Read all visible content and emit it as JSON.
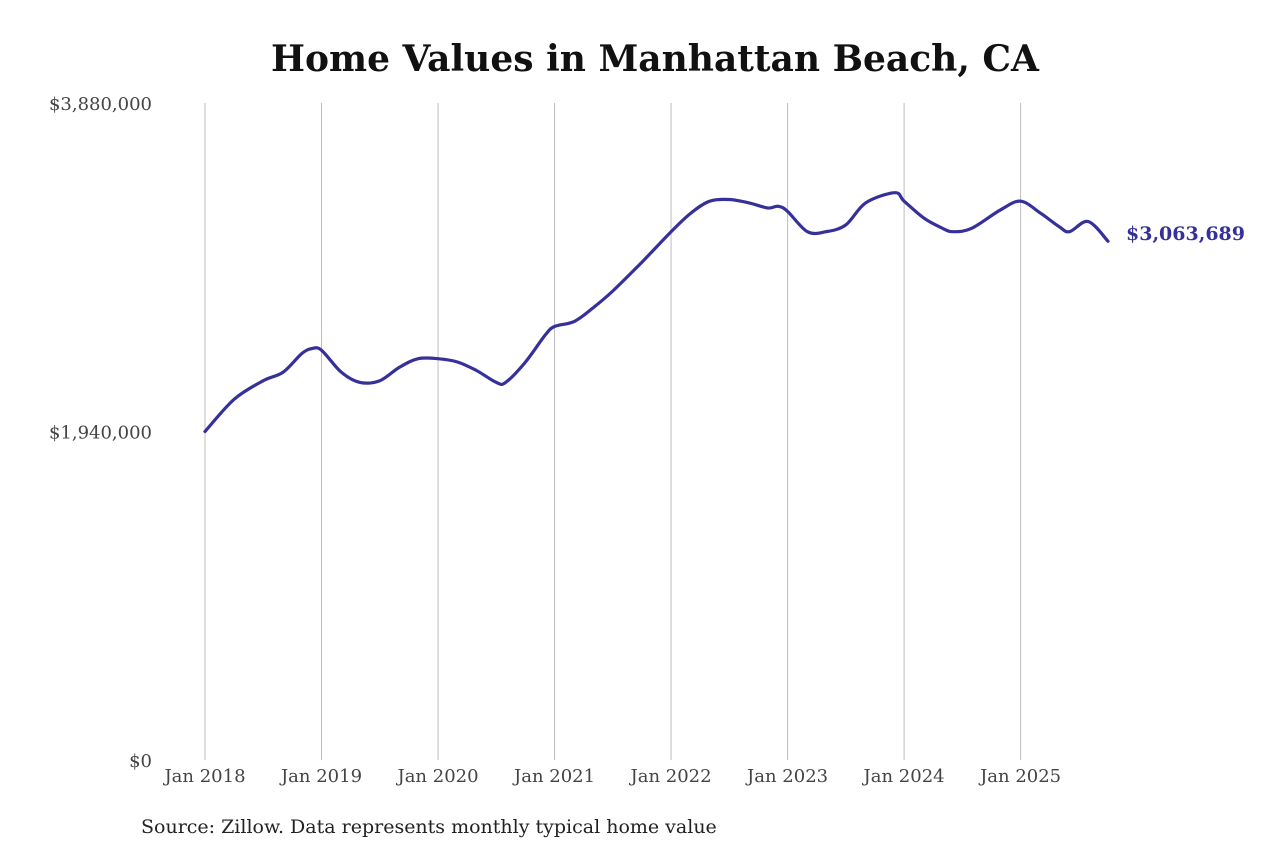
{
  "chart_data": {
    "type": "line",
    "title": "Home Values in Manhattan Beach, CA",
    "source": "Source: Zillow. Data represents monthly typical home value",
    "ylim": [
      0,
      3880000
    ],
    "yticks": [
      {
        "value": 0,
        "label": "$0"
      },
      {
        "value": 1940000,
        "label": "$1,940,000"
      },
      {
        "value": 3880000,
        "label": "$3,880,000"
      }
    ],
    "xlim": [
      2018.0,
      2025.75
    ],
    "xticks": [
      {
        "value": 2018,
        "label": "Jan 2018"
      },
      {
        "value": 2019,
        "label": "Jan 2019"
      },
      {
        "value": 2020,
        "label": "Jan 2020"
      },
      {
        "value": 2021,
        "label": "Jan 2021"
      },
      {
        "value": 2022,
        "label": "Jan 2022"
      },
      {
        "value": 2023,
        "label": "Jan 2023"
      },
      {
        "value": 2024,
        "label": "Jan 2024"
      },
      {
        "value": 2025,
        "label": "Jan 2025"
      }
    ],
    "grid": "vertical",
    "line_color": "#36309a",
    "last_value_label": "$3,063,689",
    "series": [
      {
        "x": [
          2018.0,
          2018.25,
          2018.5,
          2018.67,
          2018.83,
          2018.92,
          2019.0,
          2019.17,
          2019.33,
          2019.5,
          2019.67,
          2019.83,
          2020.0,
          2020.17,
          2020.33,
          2020.5,
          2020.58,
          2020.75,
          2020.92,
          2021.0,
          2021.17,
          2021.33,
          2021.5,
          2021.75,
          2022.0,
          2022.17,
          2022.33,
          2022.5,
          2022.67,
          2022.83,
          2022.92,
          2023.0,
          2023.17,
          2023.33,
          2023.5,
          2023.67,
          2023.92,
          2024.0,
          2024.17,
          2024.33,
          2024.42,
          2024.58,
          2024.83,
          2025.0,
          2025.17,
          2025.33,
          2025.42,
          2025.58,
          2025.75
        ],
        "values": [
          1940000,
          2130000,
          2240000,
          2290000,
          2400000,
          2430000,
          2420000,
          2290000,
          2230000,
          2240000,
          2320000,
          2370000,
          2370000,
          2350000,
          2300000,
          2230000,
          2230000,
          2350000,
          2510000,
          2560000,
          2590000,
          2670000,
          2770000,
          2940000,
          3120000,
          3230000,
          3300000,
          3310000,
          3290000,
          3260000,
          3270000,
          3240000,
          3120000,
          3120000,
          3160000,
          3290000,
          3350000,
          3300000,
          3200000,
          3140000,
          3120000,
          3140000,
          3250000,
          3300000,
          3230000,
          3150000,
          3120000,
          3180000,
          3063689
        ]
      }
    ]
  }
}
